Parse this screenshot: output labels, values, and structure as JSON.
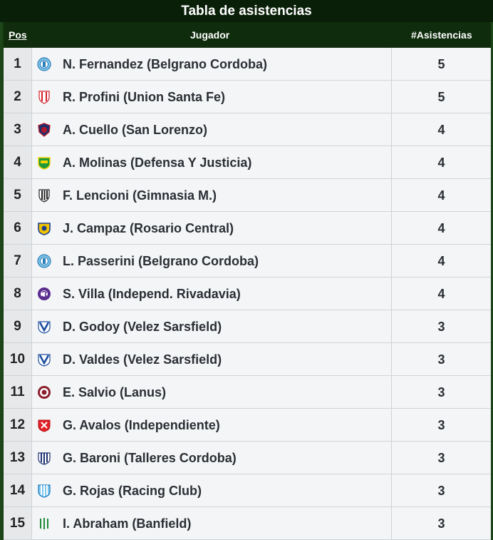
{
  "title": "Tabla de asistencias",
  "headers": {
    "pos": "Pos",
    "player": "Jugador",
    "assists": "#Asistencias"
  },
  "rows": [
    {
      "pos": "1",
      "player": "N. Fernandez (Belgrano Cordoba)",
      "assists": "5",
      "crest": "belgrano-crest-icon"
    },
    {
      "pos": "2",
      "player": "R. Profini (Union Santa Fe)",
      "assists": "5",
      "crest": "union-crest-icon"
    },
    {
      "pos": "3",
      "player": "A. Cuello (San Lorenzo)",
      "assists": "4",
      "crest": "san-lorenzo-crest-icon"
    },
    {
      "pos": "4",
      "player": "A. Molinas (Defensa Y Justicia)",
      "assists": "4",
      "crest": "defensa-crest-icon"
    },
    {
      "pos": "5",
      "player": "F. Lencioni (Gimnasia M.)",
      "assists": "4",
      "crest": "gimnasia-crest-icon"
    },
    {
      "pos": "6",
      "player": "J. Campaz (Rosario Central)",
      "assists": "4",
      "crest": "rosario-crest-icon"
    },
    {
      "pos": "7",
      "player": "L. Passerini (Belgrano Cordoba)",
      "assists": "4",
      "crest": "belgrano-crest-icon"
    },
    {
      "pos": "8",
      "player": "S. Villa (Independ. Rivadavia)",
      "assists": "4",
      "crest": "rivadavia-crest-icon"
    },
    {
      "pos": "9",
      "player": "D. Godoy (Velez Sarsfield)",
      "assists": "3",
      "crest": "velez-crest-icon"
    },
    {
      "pos": "10",
      "player": "D. Valdes (Velez Sarsfield)",
      "assists": "3",
      "crest": "velez-crest-icon"
    },
    {
      "pos": "11",
      "player": "E. Salvio (Lanus)",
      "assists": "3",
      "crest": "lanus-crest-icon"
    },
    {
      "pos": "12",
      "player": "G. Avalos (Independiente)",
      "assists": "3",
      "crest": "independiente-crest-icon"
    },
    {
      "pos": "13",
      "player": "G. Baroni (Talleres Cordoba)",
      "assists": "3",
      "crest": "talleres-crest-icon"
    },
    {
      "pos": "14",
      "player": "G. Rojas (Racing Club)",
      "assists": "3",
      "crest": "racing-crest-icon"
    },
    {
      "pos": "15",
      "player": "I. Abraham (Banfield)",
      "assists": "3",
      "crest": "banfield-crest-icon"
    }
  ],
  "colors": {
    "title_bg": "#0a1f08",
    "header_bg": "#0f2c0c",
    "row_bg": "#f4f5f6",
    "pos_bg": "#e6e8ea",
    "text": "#2a2f35"
  }
}
